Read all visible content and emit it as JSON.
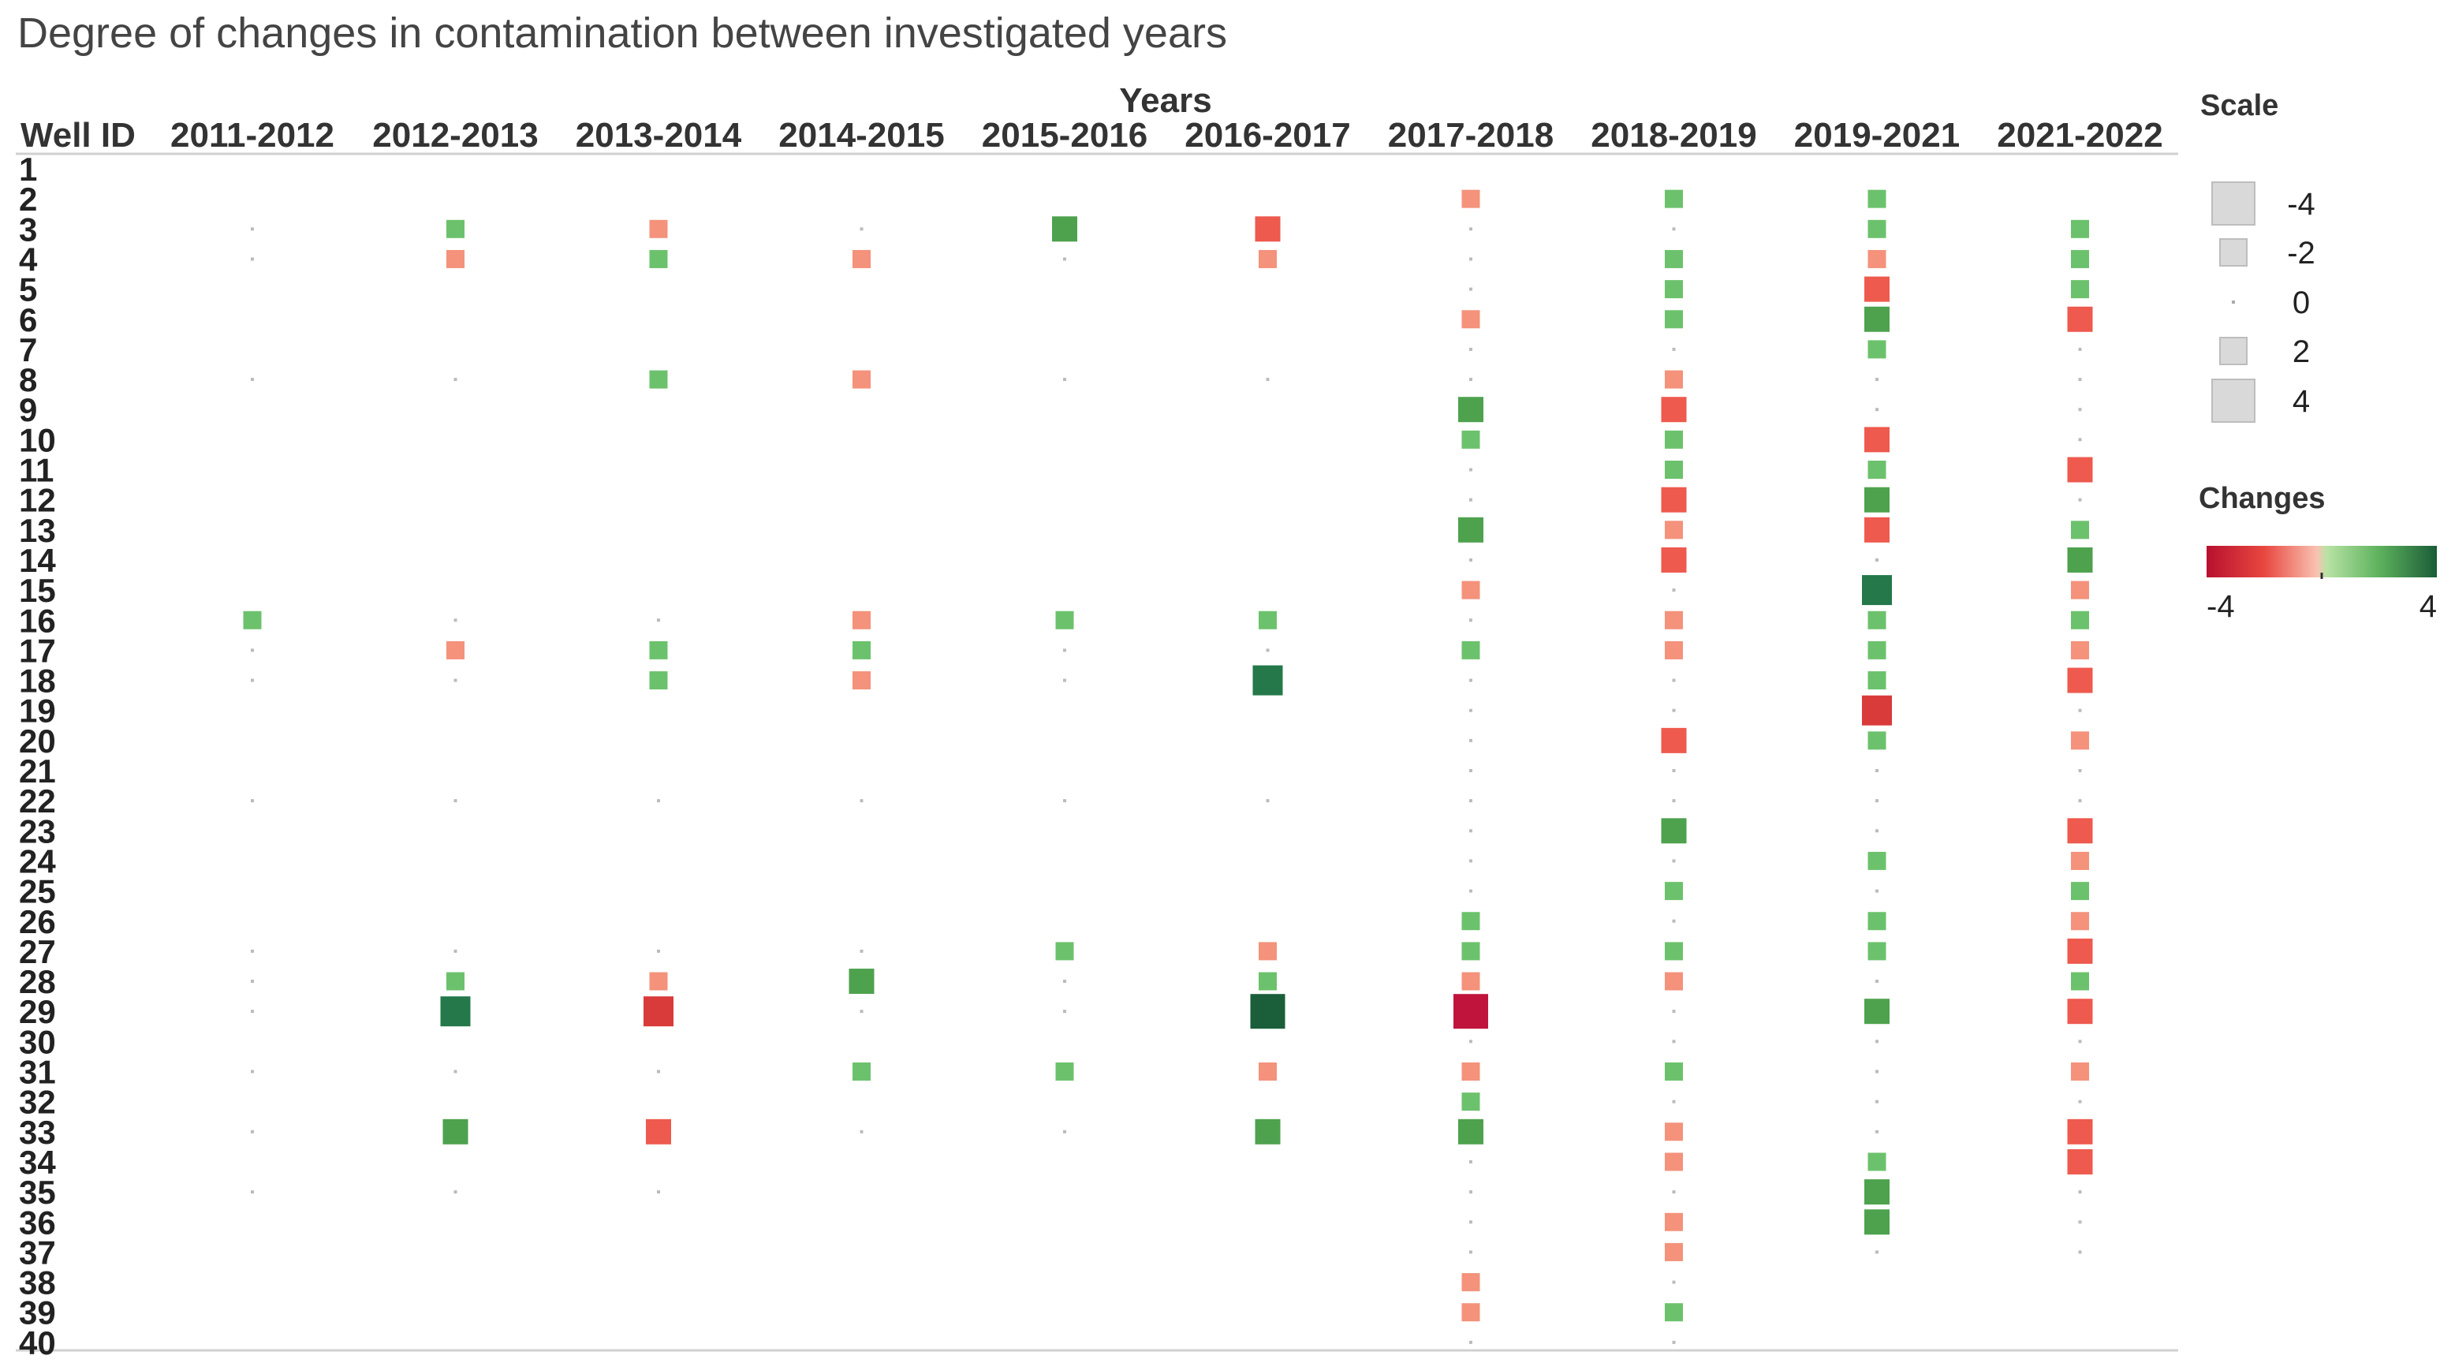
{
  "chart_data": {
    "type": "heatmap",
    "title": "Degree of changes in contamination between investigated years",
    "column_header_group": "Years",
    "row_header": "Well ID",
    "columns": [
      "2011-2012",
      "2012-2013",
      "2013-2014",
      "2014-2015",
      "2015-2016",
      "2016-2017",
      "2017-2018",
      "2018-2019",
      "2019-2021",
      "2021-2022"
    ],
    "rows": [
      "1",
      "2",
      "3",
      "4",
      "5",
      "6",
      "7",
      "8",
      "9",
      "10",
      "11",
      "12",
      "13",
      "14",
      "15",
      "16",
      "17",
      "18",
      "19",
      "20",
      "21",
      "22",
      "23",
      "24",
      "25",
      "26",
      "27",
      "28",
      "29",
      "30",
      "31",
      "32",
      "33",
      "34",
      "35",
      "36",
      "37",
      "38",
      "39",
      "40"
    ],
    "values": [
      [
        null,
        null,
        null,
        null,
        null,
        null,
        null,
        null,
        null,
        null
      ],
      [
        null,
        null,
        null,
        null,
        null,
        null,
        -1,
        1,
        1,
        null
      ],
      [
        0,
        1,
        -1,
        0,
        2,
        -2,
        0,
        0,
        1,
        1
      ],
      [
        0,
        -1,
        1,
        -1,
        0,
        -1,
        0,
        1,
        -1,
        1
      ],
      [
        null,
        null,
        null,
        null,
        null,
        null,
        0,
        1,
        -2,
        1
      ],
      [
        null,
        null,
        null,
        null,
        null,
        null,
        -1,
        1,
        2,
        -2
      ],
      [
        null,
        null,
        null,
        null,
        null,
        null,
        0,
        0,
        1,
        0
      ],
      [
        0,
        0,
        1,
        -1,
        0,
        0,
        0,
        -1,
        0,
        0
      ],
      [
        null,
        null,
        null,
        null,
        null,
        null,
        2,
        -2,
        0,
        0
      ],
      [
        null,
        null,
        null,
        null,
        null,
        null,
        1,
        1,
        -2,
        0
      ],
      [
        null,
        null,
        null,
        null,
        null,
        null,
        0,
        1,
        1,
        -2
      ],
      [
        null,
        null,
        null,
        null,
        null,
        null,
        0,
        -2,
        2,
        0
      ],
      [
        null,
        null,
        null,
        null,
        null,
        null,
        2,
        -1,
        -2,
        1
      ],
      [
        null,
        null,
        null,
        null,
        null,
        null,
        0,
        -2,
        0,
        2
      ],
      [
        null,
        null,
        null,
        null,
        null,
        null,
        -1,
        0,
        3,
        -1
      ],
      [
        1,
        0,
        0,
        -1,
        1,
        1,
        0,
        -1,
        1,
        1
      ],
      [
        0,
        -1,
        1,
        1,
        0,
        0,
        1,
        -1,
        1,
        -1
      ],
      [
        0,
        0,
        1,
        -1,
        0,
        3,
        0,
        0,
        1,
        -2
      ],
      [
        null,
        null,
        null,
        null,
        null,
        null,
        0,
        0,
        -3,
        0
      ],
      [
        null,
        null,
        null,
        null,
        null,
        null,
        0,
        -2,
        1,
        -1
      ],
      [
        null,
        null,
        null,
        null,
        null,
        null,
        0,
        0,
        0,
        0
      ],
      [
        0,
        0,
        0,
        0,
        0,
        0,
        0,
        0,
        0,
        0
      ],
      [
        null,
        null,
        null,
        null,
        null,
        null,
        0,
        2,
        0,
        -2
      ],
      [
        null,
        null,
        null,
        null,
        null,
        null,
        0,
        0,
        1,
        -1
      ],
      [
        null,
        null,
        null,
        null,
        null,
        null,
        0,
        1,
        0,
        1
      ],
      [
        null,
        null,
        null,
        null,
        null,
        null,
        1,
        0,
        1,
        -1
      ],
      [
        0,
        0,
        0,
        0,
        1,
        -1,
        1,
        1,
        1,
        -2
      ],
      [
        0,
        1,
        -1,
        2,
        0,
        1,
        -1,
        -1,
        0,
        1
      ],
      [
        0,
        3,
        -3,
        0,
        0,
        4,
        -4,
        0,
        2,
        -2
      ],
      [
        null,
        null,
        null,
        null,
        null,
        null,
        0,
        0,
        0,
        0
      ],
      [
        0,
        0,
        0,
        1,
        1,
        -1,
        -1,
        1,
        0,
        -1
      ],
      [
        null,
        null,
        null,
        null,
        null,
        null,
        1,
        0,
        0,
        0
      ],
      [
        0,
        2,
        -2,
        0,
        0,
        2,
        2,
        -1,
        0,
        -2
      ],
      [
        null,
        null,
        null,
        null,
        null,
        null,
        0,
        -1,
        1,
        -2
      ],
      [
        0,
        0,
        0,
        null,
        null,
        null,
        0,
        0,
        2,
        0
      ],
      [
        null,
        null,
        null,
        null,
        null,
        null,
        0,
        -1,
        2,
        0
      ],
      [
        null,
        null,
        null,
        null,
        null,
        null,
        0,
        -1,
        0,
        0
      ],
      [
        null,
        null,
        null,
        null,
        null,
        null,
        -1,
        0,
        null,
        null
      ],
      [
        null,
        null,
        null,
        null,
        null,
        null,
        -1,
        1,
        null,
        null
      ],
      [
        null,
        null,
        null,
        null,
        null,
        null,
        0,
        0,
        null,
        null
      ]
    ],
    "size_legend": {
      "title": "Scale",
      "values": [
        -4,
        -2,
        0,
        2,
        4
      ]
    },
    "color_legend": {
      "title": "Changes",
      "min": -4,
      "max": 4,
      "min_label": "-4",
      "max_label": "4"
    },
    "colors": {
      "neg4": "#c0143c",
      "neg3": "#d93a3a",
      "neg2": "#ee5a4e",
      "neg1": "#f4927b",
      "zero": "#bbbbbb",
      "pos1": "#6cc26c",
      "pos2": "#4ea24e",
      "pos3": "#24784a",
      "pos4": "#1b5e3a",
      "scale_fill": "#d9d9d9",
      "scale_stroke": "#bdbdbd"
    }
  }
}
